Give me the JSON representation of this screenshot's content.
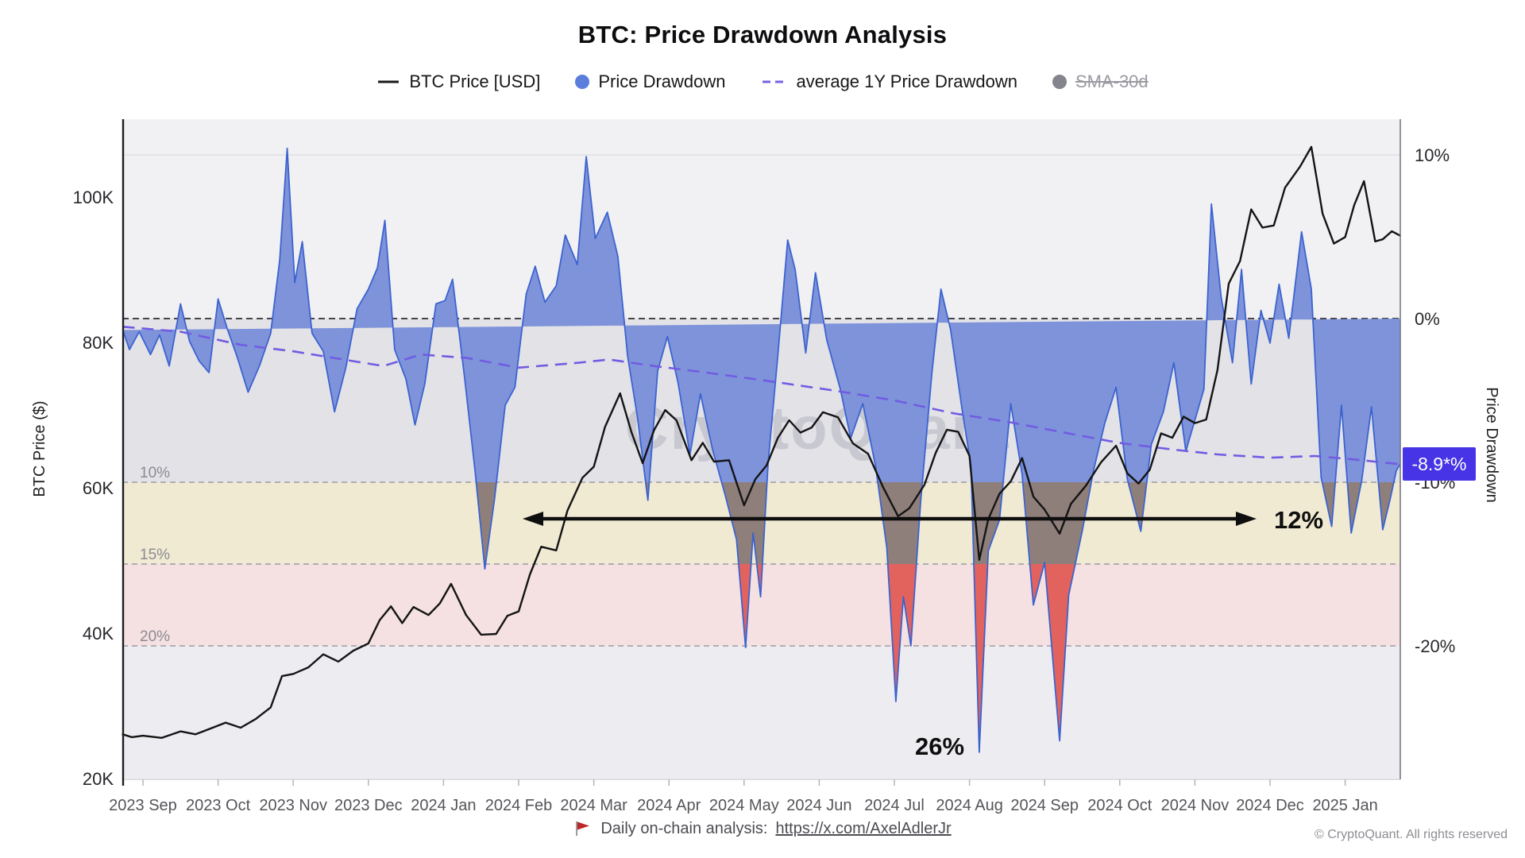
{
  "header": {
    "title": "BTC: Price Drawdown Analysis",
    "legend": [
      {
        "label": "BTC Price [USD]",
        "marker": "line",
        "color": "#1a1a1a",
        "disabled": false
      },
      {
        "label": "Price Drawdown",
        "marker": "circle",
        "color": "#5b7ddb",
        "disabled": false
      },
      {
        "label": "average 1Y Price Drawdown",
        "marker": "dash",
        "color": "#7763e3",
        "disabled": false
      },
      {
        "label": "SMA-30d",
        "marker": "circle",
        "color": "#84848d",
        "disabled": true
      }
    ]
  },
  "annotations": {
    "range_label": "12%",
    "crash_label": "26%",
    "current_value_label": "-8.9*%",
    "badge_color": "#4634e6"
  },
  "footer": {
    "analysis_text": "Daily on-chain analysis:",
    "analysis_link": "https://x.com/AxelAdlerJr",
    "copyright": "© CryptoQuant. All rights reserved"
  },
  "chart_data": {
    "type": "line",
    "title": "BTC: Price Drawdown Analysis",
    "watermark": "CryptoQuant",
    "x_unit": "months since 2023-09-01",
    "x_ticks": [
      "2023 Sep",
      "2023 Oct",
      "2023 Nov",
      "2023 Dec",
      "2024 Jan",
      "2024 Feb",
      "2024 Mar",
      "2024 Apr",
      "2024 May",
      "2024 Jun",
      "2024 Jul",
      "2024 Aug",
      "2024 Sep",
      "2024 Oct",
      "2024 Nov",
      "2024 Dec",
      "2025 Jan"
    ],
    "left_axis": {
      "title": "BTC Price ($)",
      "ticks": [
        {
          "label": "100K",
          "value": 100
        },
        {
          "label": "80K",
          "value": 80
        },
        {
          "label": "60K",
          "value": 60
        },
        {
          "label": "40K",
          "value": 40
        },
        {
          "label": "20K",
          "value": 20
        }
      ],
      "range_k_usd": [
        20,
        110.8
      ]
    },
    "right_axis": {
      "title": "Price Drawdown",
      "ticks": [
        {
          "label": "10%",
          "value": 10
        },
        {
          "label": "0%",
          "value": 0
        },
        {
          "label": "-10%",
          "value": -10
        },
        {
          "label": "-20%",
          "value": -20
        }
      ],
      "range_pct": [
        12.2,
        -28.1
      ],
      "current_value_pct": -8.9
    },
    "drawdown_levels": [
      {
        "label": "10%",
        "value": -10
      },
      {
        "label": "15%",
        "value": -15
      },
      {
        "label": "20%",
        "value": -20
      }
    ],
    "bands": [
      {
        "name": "above-zero",
        "from_pct": 12.2,
        "to_pct": 0,
        "color": "#f1f1f4"
      },
      {
        "name": "zero-to-10",
        "from_pct": 0,
        "to_pct": -10,
        "color": "#e2e2e7"
      },
      {
        "name": "10-to-15",
        "from_pct": -10,
        "to_pct": -15,
        "color": "#f0ead3"
      },
      {
        "name": "15-to-20",
        "from_pct": -15,
        "to_pct": -20,
        "color": "#f5e1e1"
      },
      {
        "name": "below-20",
        "from_pct": -20,
        "to_pct": -28.1,
        "color": "#ededf1"
      }
    ],
    "area_band_colors": {
      "blue_0_to_-10": "#7e93da",
      "dark_-10_to_-15": "#8e7f7b",
      "red_below_-15": "#e2625e",
      "outline": "#3c63cf"
    },
    "annotation_arrow": {
      "y_pct": -12.2,
      "x_from_month": 5.1,
      "x_to_month": 14.8,
      "label": "12%"
    },
    "annotation_crash": {
      "label": "26%",
      "x_month": 10.6,
      "y_pct": -26.5
    },
    "series": [
      {
        "name": "BTC Price [USD]",
        "type": "line",
        "axis": "left",
        "color": "#141414",
        "unit": "K USD",
        "points": [
          [
            -0.27,
            26.2
          ],
          [
            -0.15,
            25.8
          ],
          [
            0,
            26.0
          ],
          [
            0.25,
            25.7
          ],
          [
            0.5,
            26.6
          ],
          [
            0.7,
            26.2
          ],
          [
            0.9,
            27.0
          ],
          [
            1.1,
            27.8
          ],
          [
            1.3,
            27.1
          ],
          [
            1.5,
            28.3
          ],
          [
            1.7,
            29.9
          ],
          [
            1.85,
            34.2
          ],
          [
            2.0,
            34.5
          ],
          [
            2.2,
            35.4
          ],
          [
            2.4,
            37.2
          ],
          [
            2.6,
            36.2
          ],
          [
            2.8,
            37.7
          ],
          [
            3.0,
            38.7
          ],
          [
            3.15,
            41.9
          ],
          [
            3.3,
            43.8
          ],
          [
            3.45,
            41.5
          ],
          [
            3.6,
            43.7
          ],
          [
            3.8,
            42.6
          ],
          [
            3.95,
            44.2
          ],
          [
            4.1,
            46.9
          ],
          [
            4.3,
            42.6
          ],
          [
            4.5,
            39.9
          ],
          [
            4.7,
            40.0
          ],
          [
            4.85,
            42.5
          ],
          [
            5.0,
            43.1
          ],
          [
            5.15,
            48.2
          ],
          [
            5.3,
            52.0
          ],
          [
            5.5,
            51.5
          ],
          [
            5.65,
            57.0
          ],
          [
            5.85,
            61.5
          ],
          [
            6.0,
            63.0
          ],
          [
            6.15,
            68.5
          ],
          [
            6.35,
            73.1
          ],
          [
            6.5,
            67.8
          ],
          [
            6.65,
            63.5
          ],
          [
            6.8,
            68.0
          ],
          [
            6.95,
            70.8
          ],
          [
            7.1,
            69.4
          ],
          [
            7.3,
            63.9
          ],
          [
            7.45,
            66.3
          ],
          [
            7.6,
            63.7
          ],
          [
            7.8,
            63.9
          ],
          [
            8.0,
            57.7
          ],
          [
            8.15,
            61.3
          ],
          [
            8.3,
            63.2
          ],
          [
            8.45,
            67.0
          ],
          [
            8.6,
            69.4
          ],
          [
            8.75,
            67.7
          ],
          [
            8.9,
            68.4
          ],
          [
            9.05,
            70.5
          ],
          [
            9.25,
            69.8
          ],
          [
            9.45,
            66.2
          ],
          [
            9.65,
            64.8
          ],
          [
            9.85,
            60.2
          ],
          [
            10.05,
            56.2
          ],
          [
            10.2,
            57.3
          ],
          [
            10.4,
            60.5
          ],
          [
            10.55,
            64.9
          ],
          [
            10.7,
            68.1
          ],
          [
            10.85,
            67.8
          ],
          [
            11.0,
            64.5
          ],
          [
            11.13,
            50.2
          ],
          [
            11.25,
            55.8
          ],
          [
            11.4,
            59.3
          ],
          [
            11.55,
            61.0
          ],
          [
            11.7,
            64.2
          ],
          [
            11.85,
            58.9
          ],
          [
            12.0,
            57.1
          ],
          [
            12.2,
            53.8
          ],
          [
            12.35,
            57.9
          ],
          [
            12.55,
            60.4
          ],
          [
            12.75,
            63.6
          ],
          [
            12.95,
            65.9
          ],
          [
            13.1,
            62.1
          ],
          [
            13.25,
            60.7
          ],
          [
            13.4,
            62.6
          ],
          [
            13.55,
            67.6
          ],
          [
            13.7,
            67.0
          ],
          [
            13.85,
            69.9
          ],
          [
            14.0,
            69.0
          ],
          [
            14.15,
            69.5
          ],
          [
            14.3,
            76.3
          ],
          [
            14.45,
            88.2
          ],
          [
            14.6,
            91.3
          ],
          [
            14.75,
            98.4
          ],
          [
            14.9,
            95.9
          ],
          [
            15.05,
            96.2
          ],
          [
            15.2,
            101.4
          ],
          [
            15.4,
            104.3
          ],
          [
            15.55,
            107.0
          ],
          [
            15.7,
            97.8
          ],
          [
            15.85,
            93.7
          ],
          [
            16.0,
            94.6
          ],
          [
            16.12,
            99.0
          ],
          [
            16.25,
            102.3
          ],
          [
            16.4,
            94.0
          ],
          [
            16.5,
            94.3
          ],
          [
            16.62,
            95.4
          ],
          [
            16.73,
            94.8
          ]
        ]
      },
      {
        "name": "Price Drawdown",
        "type": "area",
        "axis": "right",
        "baseline_pct": 0,
        "unit": "%",
        "points": [
          [
            -0.27,
            -0.7
          ],
          [
            -0.18,
            -1.9
          ],
          [
            -0.05,
            -0.8
          ],
          [
            0.1,
            -2.2
          ],
          [
            0.22,
            -1.0
          ],
          [
            0.35,
            -2.9
          ],
          [
            0.5,
            0.9
          ],
          [
            0.62,
            -1.4
          ],
          [
            0.75,
            -2.6
          ],
          [
            0.88,
            -3.3
          ],
          [
            1.0,
            1.2
          ],
          [
            1.12,
            -0.6
          ],
          [
            1.25,
            -2.3
          ],
          [
            1.4,
            -4.5
          ],
          [
            1.55,
            -2.9
          ],
          [
            1.7,
            -0.9
          ],
          [
            1.82,
            3.6
          ],
          [
            1.92,
            10.4
          ],
          [
            2.02,
            2.2
          ],
          [
            2.12,
            4.7
          ],
          [
            2.25,
            -0.9
          ],
          [
            2.4,
            -2.0
          ],
          [
            2.55,
            -5.7
          ],
          [
            2.7,
            -3.0
          ],
          [
            2.85,
            0.6
          ],
          [
            3.0,
            1.8
          ],
          [
            3.12,
            3.1
          ],
          [
            3.22,
            6.0
          ],
          [
            3.35,
            -1.9
          ],
          [
            3.5,
            -3.7
          ],
          [
            3.62,
            -6.5
          ],
          [
            3.75,
            -4.0
          ],
          [
            3.9,
            0.9
          ],
          [
            4.02,
            1.1
          ],
          [
            4.12,
            2.4
          ],
          [
            4.28,
            -3.6
          ],
          [
            4.42,
            -9.3
          ],
          [
            4.55,
            -15.3
          ],
          [
            4.68,
            -11.0
          ],
          [
            4.82,
            -5.3
          ],
          [
            4.95,
            -4.2
          ],
          [
            5.1,
            1.5
          ],
          [
            5.22,
            3.2
          ],
          [
            5.35,
            1.0
          ],
          [
            5.5,
            2.0
          ],
          [
            5.62,
            5.1
          ],
          [
            5.78,
            3.3
          ],
          [
            5.9,
            9.9
          ],
          [
            6.02,
            4.9
          ],
          [
            6.18,
            6.5
          ],
          [
            6.32,
            3.8
          ],
          [
            6.45,
            -2.3
          ],
          [
            6.58,
            -6.0
          ],
          [
            6.72,
            -11.1
          ],
          [
            6.85,
            -3.2
          ],
          [
            6.98,
            -1.1
          ],
          [
            7.12,
            -3.9
          ],
          [
            7.28,
            -8.3
          ],
          [
            7.42,
            -4.6
          ],
          [
            7.58,
            -8.0
          ],
          [
            7.75,
            -10.8
          ],
          [
            7.9,
            -13.5
          ],
          [
            8.02,
            -20.1
          ],
          [
            8.12,
            -13.1
          ],
          [
            8.22,
            -17.0
          ],
          [
            8.32,
            -8.8
          ],
          [
            8.45,
            -2.2
          ],
          [
            8.58,
            4.8
          ],
          [
            8.68,
            3.0
          ],
          [
            8.82,
            -2.1
          ],
          [
            8.95,
            2.8
          ],
          [
            9.1,
            -1.3
          ],
          [
            9.28,
            -4.3
          ],
          [
            9.42,
            -7.3
          ],
          [
            9.58,
            -5.2
          ],
          [
            9.75,
            -9.0
          ],
          [
            9.9,
            -14.0
          ],
          [
            10.02,
            -23.4
          ],
          [
            10.12,
            -17.0
          ],
          [
            10.22,
            -20.0
          ],
          [
            10.35,
            -11.2
          ],
          [
            10.5,
            -3.3
          ],
          [
            10.62,
            1.8
          ],
          [
            10.75,
            -0.7
          ],
          [
            10.9,
            -5.5
          ],
          [
            11.02,
            -9.0
          ],
          [
            11.13,
            -26.5
          ],
          [
            11.25,
            -14.2
          ],
          [
            11.4,
            -12.3
          ],
          [
            11.55,
            -5.2
          ],
          [
            11.7,
            -9.5
          ],
          [
            11.85,
            -17.5
          ],
          [
            12.0,
            -14.9
          ],
          [
            12.2,
            -25.8
          ],
          [
            12.32,
            -16.9
          ],
          [
            12.5,
            -13.0
          ],
          [
            12.65,
            -9.3
          ],
          [
            12.8,
            -6.4
          ],
          [
            12.95,
            -4.2
          ],
          [
            13.1,
            -9.8
          ],
          [
            13.28,
            -13.0
          ],
          [
            13.42,
            -7.7
          ],
          [
            13.58,
            -5.7
          ],
          [
            13.72,
            -2.7
          ],
          [
            13.88,
            -8.1
          ],
          [
            14.0,
            -6.2
          ],
          [
            14.12,
            -4.3
          ],
          [
            14.22,
            7.0
          ],
          [
            14.35,
            1.3
          ],
          [
            14.5,
            -2.7
          ],
          [
            14.62,
            3.0
          ],
          [
            14.75,
            -4.0
          ],
          [
            14.88,
            0.5
          ],
          [
            15.0,
            -1.5
          ],
          [
            15.12,
            2.1
          ],
          [
            15.25,
            -1.2
          ],
          [
            15.42,
            5.3
          ],
          [
            15.55,
            1.8
          ],
          [
            15.68,
            -9.7
          ],
          [
            15.82,
            -12.7
          ],
          [
            15.95,
            -5.3
          ],
          [
            16.08,
            -13.1
          ],
          [
            16.22,
            -9.9
          ],
          [
            16.35,
            -5.4
          ],
          [
            16.5,
            -12.9
          ],
          [
            16.6,
            -11.0
          ],
          [
            16.68,
            -9.3
          ],
          [
            16.73,
            -8.9
          ]
        ]
      },
      {
        "name": "average 1Y Price Drawdown",
        "type": "dashed-line",
        "axis": "right",
        "color": "#715ce2",
        "unit": "%",
        "points": [
          [
            -0.27,
            -0.5
          ],
          [
            0.5,
            -0.8
          ],
          [
            1.3,
            -1.6
          ],
          [
            2.0,
            -2.0
          ],
          [
            2.8,
            -2.6
          ],
          [
            3.2,
            -2.9
          ],
          [
            3.7,
            -2.2
          ],
          [
            4.3,
            -2.4
          ],
          [
            5.0,
            -3.0
          ],
          [
            5.8,
            -2.7
          ],
          [
            6.2,
            -2.5
          ],
          [
            6.8,
            -2.9
          ],
          [
            7.5,
            -3.3
          ],
          [
            8.3,
            -3.8
          ],
          [
            9.2,
            -4.4
          ],
          [
            10.0,
            -5.0
          ],
          [
            10.8,
            -5.8
          ],
          [
            11.5,
            -6.3
          ],
          [
            12.3,
            -7.0
          ],
          [
            13.0,
            -7.6
          ],
          [
            13.7,
            -8.0
          ],
          [
            14.3,
            -8.3
          ],
          [
            15.0,
            -8.5
          ],
          [
            15.6,
            -8.4
          ],
          [
            16.1,
            -8.6
          ],
          [
            16.73,
            -8.9
          ]
        ]
      },
      {
        "name": "SMA-30d",
        "type": "line",
        "axis": "left",
        "color": "#84848d",
        "hidden": true,
        "points": []
      }
    ]
  }
}
